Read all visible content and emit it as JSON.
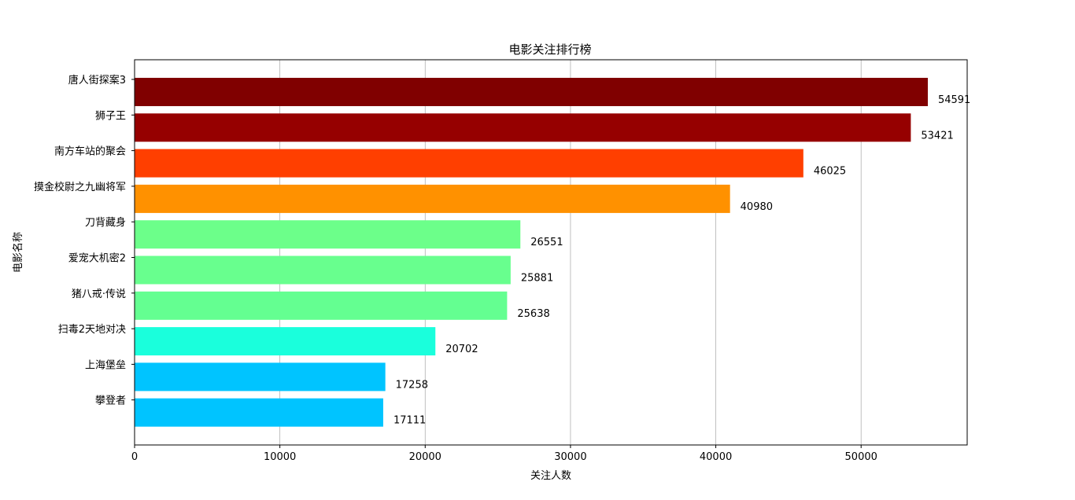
{
  "chart_data": {
    "type": "bar",
    "orientation": "horizontal",
    "title": "电影关注排行榜",
    "xlabel": "关注人数",
    "ylabel": "电影名称",
    "xlim": [
      0,
      57300
    ],
    "xticks": [
      0,
      10000,
      20000,
      30000,
      40000,
      50000
    ],
    "grid": "x",
    "categories": [
      "唐人街探案3",
      "狮子王",
      "南方车站的聚会",
      "摸金校尉之九幽将军",
      "刀背藏身",
      "爱宠大机密2",
      "猪八戒·传说",
      "扫毒2天地对决",
      "上海堡垒",
      "攀登者"
    ],
    "values": [
      54591,
      53421,
      46025,
      40980,
      26551,
      25881,
      25638,
      20702,
      17258,
      17111
    ],
    "colors": [
      "#800000",
      "#960000",
      "#ff3f00",
      "#ff9100",
      "#6cff8a",
      "#68ff8e",
      "#64ff91",
      "#1affdc",
      "#00c4ff",
      "#00c4ff"
    ]
  }
}
